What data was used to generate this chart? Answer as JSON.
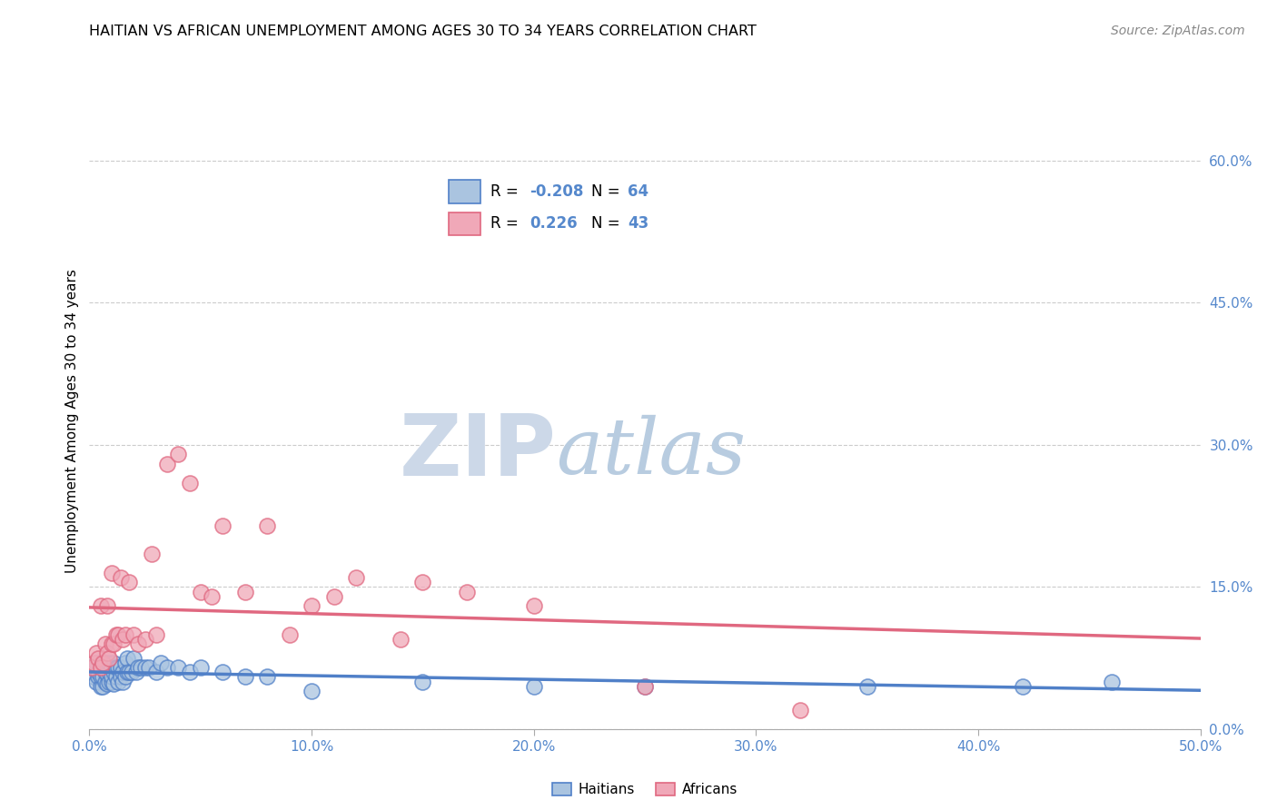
{
  "title": "HAITIAN VS AFRICAN UNEMPLOYMENT AMONG AGES 30 TO 34 YEARS CORRELATION CHART",
  "source": "Source: ZipAtlas.com",
  "ylabel": "Unemployment Among Ages 30 to 34 years",
  "xlim": [
    0.0,
    0.5
  ],
  "ylim": [
    0.0,
    0.65
  ],
  "xticks": [
    0.0,
    0.1,
    0.2,
    0.3,
    0.4,
    0.5
  ],
  "xticklabels": [
    "0.0%",
    "10.0%",
    "20.0%",
    "30.0%",
    "40.0%",
    "50.0%"
  ],
  "yticks_right": [
    0.0,
    0.15,
    0.3,
    0.45,
    0.6
  ],
  "ytick_labels_right": [
    "0.0%",
    "15.0%",
    "30.0%",
    "45.0%",
    "60.0%"
  ],
  "background_color": "#ffffff",
  "grid_color": "#cccccc",
  "watermark_zip": "ZIP",
  "watermark_atlas": "atlas",
  "watermark_color_zip": "#ccd8e8",
  "watermark_color_atlas": "#b8cce0",
  "legend_r_haitian": "-0.208",
  "legend_n_haitian": "64",
  "legend_r_african": "0.226",
  "legend_n_african": "43",
  "haitian_color": "#aac4e0",
  "african_color": "#f0a8b8",
  "haitian_line_color": "#5080c8",
  "african_line_color": "#e06880",
  "label_color": "#5588cc",
  "haitian_x": [
    0.001,
    0.002,
    0.002,
    0.003,
    0.003,
    0.004,
    0.004,
    0.005,
    0.005,
    0.005,
    0.006,
    0.006,
    0.006,
    0.007,
    0.007,
    0.007,
    0.008,
    0.008,
    0.008,
    0.009,
    0.009,
    0.009,
    0.01,
    0.01,
    0.01,
    0.011,
    0.011,
    0.011,
    0.012,
    0.012,
    0.013,
    0.013,
    0.014,
    0.014,
    0.015,
    0.015,
    0.016,
    0.016,
    0.017,
    0.017,
    0.018,
    0.019,
    0.02,
    0.021,
    0.022,
    0.023,
    0.025,
    0.027,
    0.03,
    0.032,
    0.035,
    0.04,
    0.045,
    0.05,
    0.06,
    0.07,
    0.08,
    0.1,
    0.15,
    0.2,
    0.25,
    0.35,
    0.42,
    0.46
  ],
  "haitian_y": [
    0.06,
    0.055,
    0.065,
    0.05,
    0.07,
    0.055,
    0.06,
    0.045,
    0.055,
    0.065,
    0.045,
    0.055,
    0.065,
    0.05,
    0.06,
    0.07,
    0.048,
    0.058,
    0.068,
    0.05,
    0.06,
    0.07,
    0.05,
    0.055,
    0.065,
    0.048,
    0.06,
    0.07,
    0.055,
    0.065,
    0.05,
    0.065,
    0.055,
    0.065,
    0.05,
    0.06,
    0.055,
    0.07,
    0.06,
    0.075,
    0.06,
    0.06,
    0.075,
    0.06,
    0.065,
    0.065,
    0.065,
    0.065,
    0.06,
    0.07,
    0.065,
    0.065,
    0.06,
    0.065,
    0.06,
    0.055,
    0.055,
    0.04,
    0.05,
    0.045,
    0.045,
    0.045,
    0.045,
    0.05
  ],
  "african_x": [
    0.001,
    0.002,
    0.003,
    0.004,
    0.005,
    0.005,
    0.006,
    0.007,
    0.008,
    0.008,
    0.009,
    0.01,
    0.01,
    0.011,
    0.012,
    0.013,
    0.014,
    0.015,
    0.016,
    0.018,
    0.02,
    0.022,
    0.025,
    0.028,
    0.03,
    0.035,
    0.04,
    0.045,
    0.05,
    0.055,
    0.06,
    0.07,
    0.08,
    0.09,
    0.1,
    0.11,
    0.12,
    0.14,
    0.15,
    0.17,
    0.2,
    0.25,
    0.32
  ],
  "african_y": [
    0.065,
    0.07,
    0.08,
    0.075,
    0.065,
    0.13,
    0.07,
    0.09,
    0.08,
    0.13,
    0.075,
    0.09,
    0.165,
    0.09,
    0.1,
    0.1,
    0.16,
    0.095,
    0.1,
    0.155,
    0.1,
    0.09,
    0.095,
    0.185,
    0.1,
    0.28,
    0.29,
    0.26,
    0.145,
    0.14,
    0.215,
    0.145,
    0.215,
    0.1,
    0.13,
    0.14,
    0.16,
    0.095,
    0.155,
    0.145,
    0.13,
    0.045,
    0.02
  ]
}
